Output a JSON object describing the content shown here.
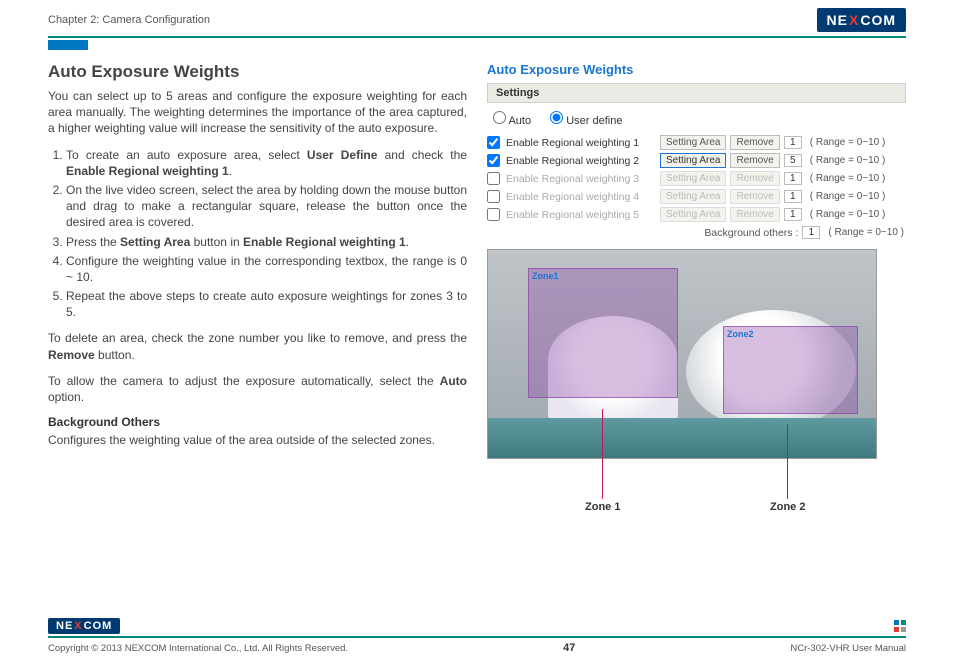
{
  "header": {
    "chapter": "Chapter 2: Camera Configuration",
    "logo_pre": "NE",
    "logo_x": "X",
    "logo_post": "COM"
  },
  "left": {
    "heading": "Auto Exposure Weights",
    "intro": "You can select up to 5 areas and configure the exposure weighting for each area manually. The weighting determines the importance of the area captured, a higher weighting value will increase the sensitivity of the auto exposure.",
    "step1_a": "To create an auto exposure area, select ",
    "step1_b": "User Define",
    "step1_c": " and check the ",
    "step1_d": "Enable Regional weighting 1",
    "step1_e": ".",
    "step2": "On the live video screen, select the area by holding down the mouse button and drag to make a rectangular square, release the button once the desired area is covered.",
    "step3_a": "Press the ",
    "step3_b": "Setting Area",
    "step3_c": " button in ",
    "step3_d": "Enable Regional weighting 1",
    "step3_e": ".",
    "step4": "Configure the weighting value in the corresponding textbox, the range is 0 ~ 10.",
    "step5": "Repeat the above steps to create auto exposure weightings for zones 3 to 5.",
    "delete_a": "To delete an area, check the zone number you like to remove, and press the ",
    "delete_b": "Remove",
    "delete_c": " button.",
    "auto_a": "To allow the camera to adjust the exposure automatically, select the ",
    "auto_b": "Auto",
    "auto_c": " option.",
    "bg_heading": "Background Others",
    "bg_text": "Configures the weighting value of the area outside of the selected zones."
  },
  "ui": {
    "title": "Auto Exposure Weights",
    "settings_label": "Settings",
    "radio_auto": "Auto",
    "radio_user": "User define",
    "rows": [
      {
        "checked": true,
        "enabled": true,
        "label": "Enable Regional weighting 1",
        "btn1": "Setting Area",
        "btn2": "Remove",
        "val": "1",
        "range": "( Range = 0~10 )",
        "active": false
      },
      {
        "checked": true,
        "enabled": true,
        "label": "Enable Regional weighting 2",
        "btn1": "Setting Area",
        "btn2": "Remove",
        "val": "5",
        "range": "( Range = 0~10 )",
        "active": true
      },
      {
        "checked": false,
        "enabled": false,
        "label": "Enable Regional weighting 3",
        "btn1": "Setting Area",
        "btn2": "Remove",
        "val": "1",
        "range": "( Range = 0~10 )",
        "active": false
      },
      {
        "checked": false,
        "enabled": false,
        "label": "Enable Regional weighting 4",
        "btn1": "Setting Area",
        "btn2": "Remove",
        "val": "1",
        "range": "( Range = 0~10 )",
        "active": false
      },
      {
        "checked": false,
        "enabled": false,
        "label": "Enable Regional weighting 5",
        "btn1": "Setting Area",
        "btn2": "Remove",
        "val": "1",
        "range": "( Range = 0~10 )",
        "active": false
      }
    ],
    "bg_label": "Background others :",
    "bg_val": "1",
    "bg_range": "( Range = 0~10 )",
    "zone1_tag": "Zone1",
    "zone2_tag": "Zone2",
    "zone1_caption": "Zone 1",
    "zone2_caption": "Zone 2"
  },
  "footer": {
    "copyright": "Copyright © 2013 NEXCOM International Co., Ltd. All Rights Reserved.",
    "page": "47",
    "manual": "NCr-302-VHR User Manual"
  }
}
